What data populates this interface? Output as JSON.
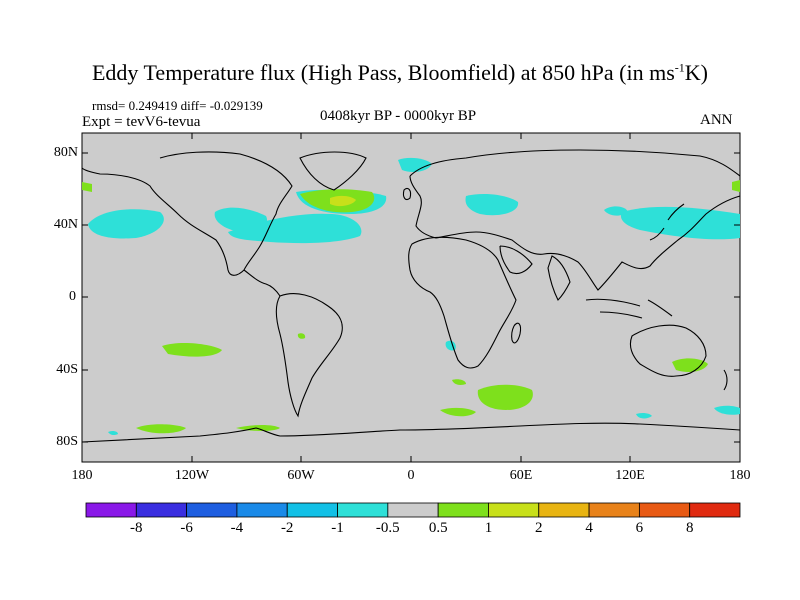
{
  "title": {
    "main": "Eddy Temperature flux (High Pass, Bloomfield) at 850 hPa (in ms",
    "sup": "-1",
    "end": "K)"
  },
  "stats": "rmsd= 0.249419 diff= -0.029139",
  "expt": "Expt = tevV6-tevua",
  "period": "0408kyr BP - 0000kyr BP",
  "season": "ANN",
  "axes": {
    "lat_ticks": [
      "80N",
      "40N",
      "0",
      "40S",
      "80S"
    ],
    "lon_ticks": [
      "180",
      "120W",
      "60W",
      "0",
      "60E",
      "120E",
      "180"
    ]
  },
  "colorbar": {
    "labels": [
      "-8",
      "-6",
      "-4",
      "-2",
      "-1",
      "-0.5",
      "0.5",
      "1",
      "2",
      "4",
      "6",
      "8"
    ],
    "colors": [
      "#8a18e8",
      "#3a2ee0",
      "#1e5ee0",
      "#1a8ae8",
      "#12c0e6",
      "#2ee0d8",
      "#cccccc",
      "#7ee01c",
      "#c8e01a",
      "#e8b412",
      "#e8821a",
      "#e85a14",
      "#e02a10"
    ]
  },
  "map": {
    "background": "#cccccc",
    "coast_color": "#000000"
  }
}
